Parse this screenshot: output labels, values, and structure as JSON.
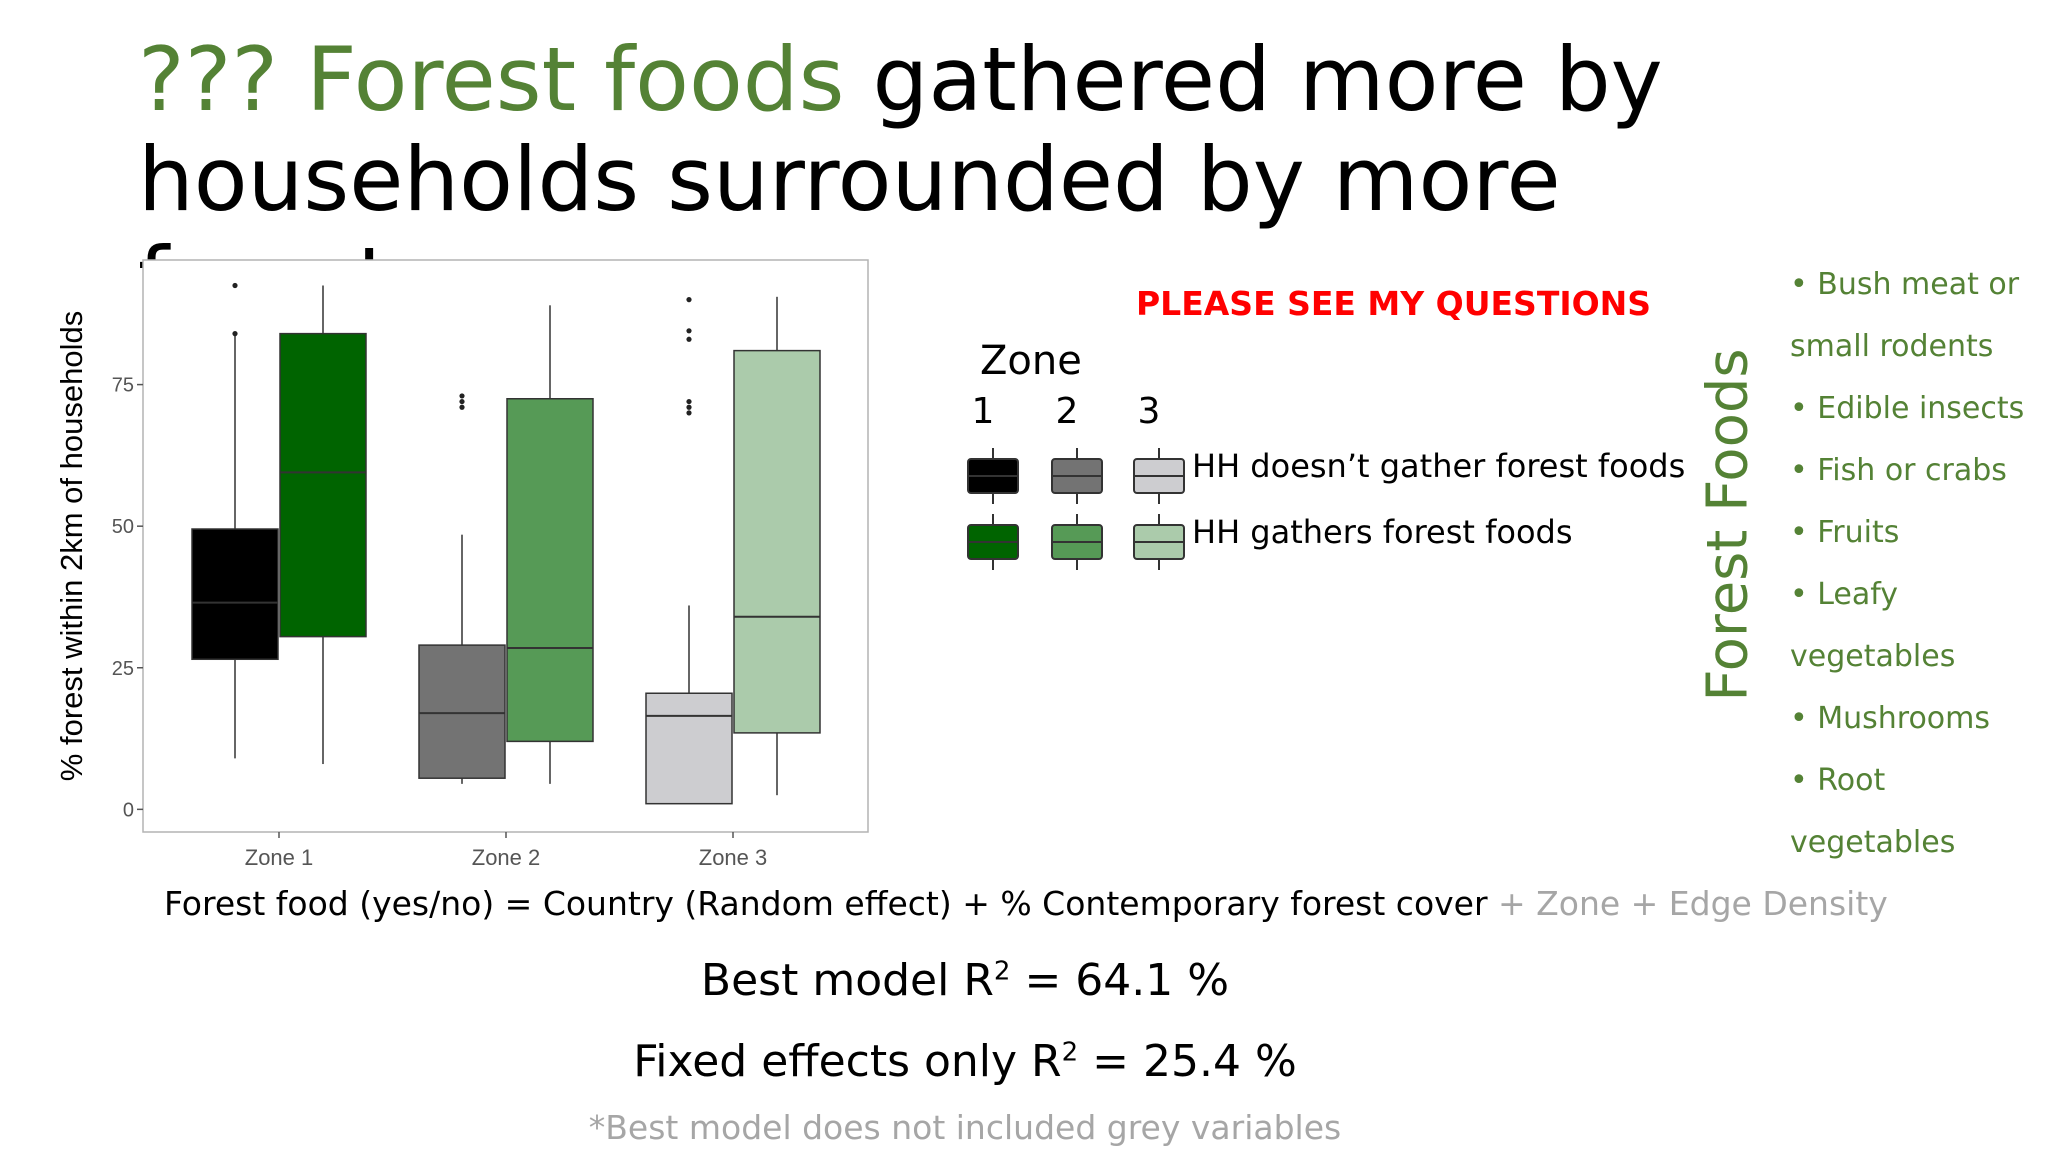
{
  "slide": {
    "title_green": "??? Forest foods",
    "title_rest": " gathered more by households surrounded by more forest",
    "questions_note": "PLEASE SEE MY QUESTIONS",
    "legend": {
      "title": "Zone",
      "zone_labels": [
        "1",
        "2",
        "3"
      ],
      "row_not_gather": "HH doesn’t gather forest foods",
      "row_gather": "HH gathers forest foods"
    },
    "side_label": "Forest Foods",
    "forest_food_types": [
      "Bush meat or small rodents",
      "Edible insects",
      "Fish or crabs",
      "Fruits",
      "Leafy vegetables",
      "Mushrooms",
      "Root vegetables"
    ],
    "formula_main": "Forest food (yes/no) = Country (Random effect) + % Contemporary forest cover",
    "formula_grey": " + Zone + Edge Density",
    "best_model_label": "Best model R",
    "best_model_sup": "2",
    "best_model_value": " = 64.1 %",
    "fixed_label": "Fixed effects only R",
    "fixed_sup": "2",
    "fixed_value": "  = 25.4 %",
    "footnote": "*Best model does not included grey variables"
  },
  "colors": {
    "zone1_no": "#000000",
    "zone1_yes": "#006400",
    "zone2_no": "#737373",
    "zone2_yes": "#569a56",
    "zone3_no": "#cdcdd0",
    "zone3_yes": "#abcbab",
    "title_green": "#548235",
    "alert_red": "#ff0000",
    "formula_grey": "#a6a6a6"
  },
  "chart_data": {
    "type": "boxplot",
    "ylabel": "% forest within 2km of households",
    "categories": [
      "Zone 1",
      "Zone 2",
      "Zone 3"
    ],
    "y_ticks": [
      0,
      25,
      50,
      75
    ],
    "ylim": [
      -4,
      97
    ],
    "groups": [
      "HH doesn’t gather forest foods",
      "HH gathers forest foods"
    ],
    "boxes": [
      {
        "zone": "Zone 1",
        "group": "no",
        "min": 9,
        "q1": 26.5,
        "median": 36.5,
        "q3": 49.5,
        "max": 84,
        "outliers": [
          84,
          92.5
        ]
      },
      {
        "zone": "Zone 1",
        "group": "yes",
        "min": 8,
        "q1": 30.5,
        "median": 59.5,
        "q3": 84,
        "max": 92.5,
        "outliers": []
      },
      {
        "zone": "Zone 2",
        "group": "no",
        "min": 4.5,
        "q1": 5.5,
        "median": 17,
        "q3": 29,
        "max": 48.5,
        "outliers": [
          71,
          72,
          73
        ]
      },
      {
        "zone": "Zone 2",
        "group": "yes",
        "min": 4.5,
        "q1": 12,
        "median": 28.5,
        "q3": 72.5,
        "max": 89,
        "outliers": []
      },
      {
        "zone": "Zone 3",
        "group": "no",
        "min": 1,
        "q1": 1,
        "median": 16.5,
        "q3": 20.5,
        "max": 36,
        "outliers": [
          70,
          71,
          72,
          83,
          84.5,
          90
        ]
      },
      {
        "zone": "Zone 3",
        "group": "yes",
        "min": 2.5,
        "q1": 13.5,
        "median": 34,
        "q3": 81,
        "max": 90.5,
        "outliers": []
      }
    ],
    "grid": false,
    "legend_position": "right"
  }
}
